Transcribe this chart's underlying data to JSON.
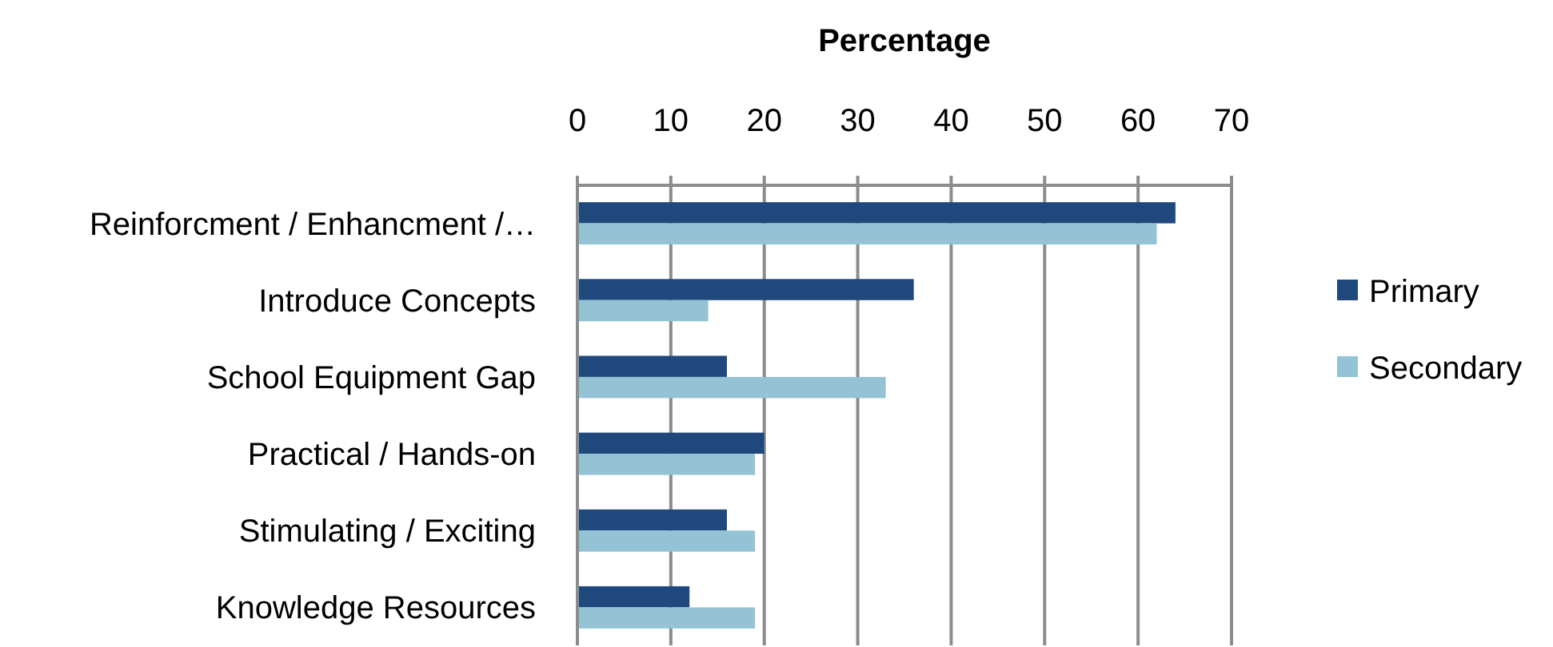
{
  "chart_data": {
    "type": "bar",
    "orientation": "horizontal",
    "xlabel": "Percentage",
    "categories": [
      "Reinforcment / Enhancment /…",
      "Introduce Concepts",
      "School Equipment Gap",
      "Practical / Hands-on",
      "Stimulating / Exciting",
      "Knowledge Resources"
    ],
    "series": [
      {
        "name": "Primary",
        "color": "#1f497d",
        "values": [
          64,
          36,
          16,
          20,
          16,
          12
        ]
      },
      {
        "name": "Secondary",
        "color": "#93c3d5",
        "values": [
          62,
          14,
          33,
          19,
          19,
          19
        ]
      }
    ],
    "xlim": [
      0,
      70
    ],
    "xticks": [
      0,
      10,
      20,
      30,
      40,
      50,
      60,
      70
    ],
    "grid": "x",
    "legend": "right"
  }
}
